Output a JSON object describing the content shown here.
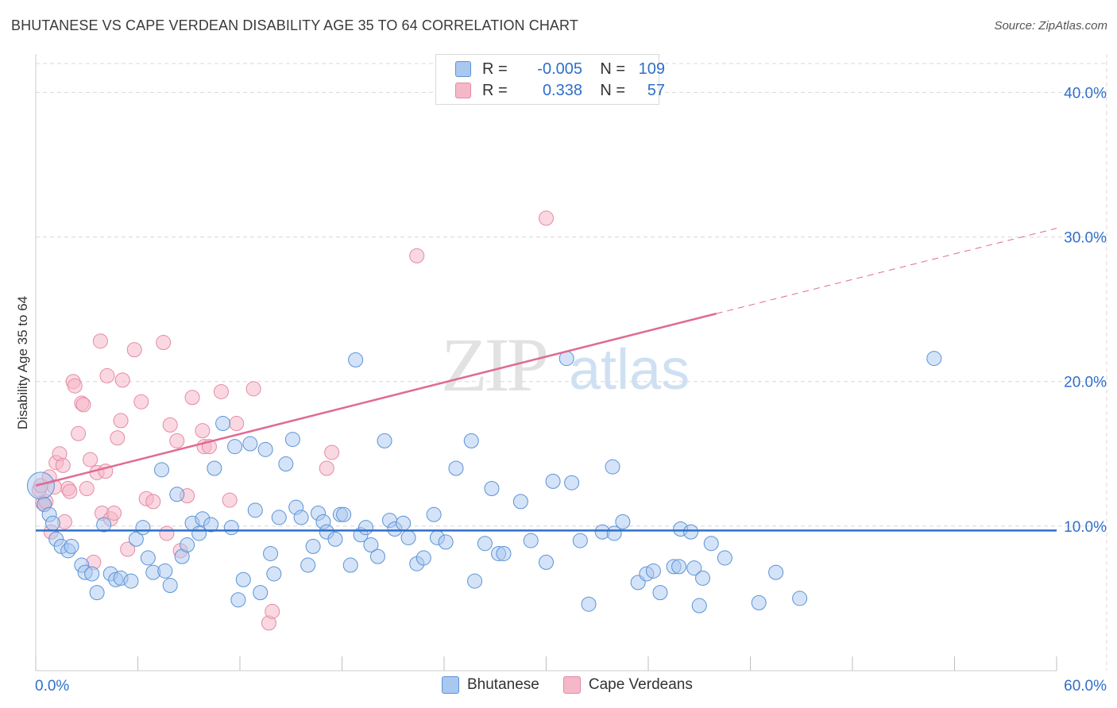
{
  "title": "BHUTANESE VS CAPE VERDEAN DISABILITY AGE 35 TO 64 CORRELATION CHART",
  "source": "Source: ZipAtlas.com",
  "watermark": {
    "zip": "ZIP",
    "atlas": "atlas"
  },
  "legend": {
    "rows": [
      {
        "r_label": "R =",
        "r_value": "-0.005",
        "n_label": "N =",
        "n_value": "109"
      },
      {
        "r_label": "R =",
        "r_value": "0.338",
        "n_label": "N =",
        "n_value": "57"
      }
    ]
  },
  "colors": {
    "blue_fill": "#a9c8f0",
    "blue_stroke": "#5b93d6",
    "blue_line": "#2f6fc9",
    "pink_fill": "#f5b8c9",
    "pink_stroke": "#e58aa6",
    "pink_line": "#e06b93",
    "tick_label": "#2f6fc9",
    "grid": "#d8d8d8"
  },
  "chart_data": {
    "type": "scatter",
    "title": "BHUTANESE VS CAPE VERDEAN DISABILITY AGE 35 TO 64 CORRELATION CHART",
    "xlabel": "",
    "ylabel": "Disability Age 35 to 64",
    "xlim": [
      0,
      60
    ],
    "ylim": [
      0,
      42
    ],
    "x_tick_labels": [
      "0.0%",
      "60.0%"
    ],
    "y_ticks": [
      10,
      20,
      30,
      40
    ],
    "y_tick_labels": [
      "10.0%",
      "20.0%",
      "30.0%",
      "40.0%"
    ],
    "grid": true,
    "legend_position": "top-center",
    "series": [
      {
        "name": "Bhutanese",
        "color": "#a9c8f0",
        "points": [
          [
            0.3,
            12.8
          ],
          [
            0.5,
            11.5
          ],
          [
            0.8,
            10.8
          ],
          [
            1.0,
            10.2
          ],
          [
            1.2,
            9.1
          ],
          [
            1.5,
            8.6
          ],
          [
            1.9,
            8.3
          ],
          [
            2.1,
            8.6
          ],
          [
            2.7,
            7.3
          ],
          [
            2.9,
            6.8
          ],
          [
            3.3,
            6.7
          ],
          [
            3.6,
            5.4
          ],
          [
            4.0,
            10.1
          ],
          [
            4.4,
            6.7
          ],
          [
            4.7,
            6.3
          ],
          [
            5.0,
            6.4
          ],
          [
            5.6,
            6.2
          ],
          [
            5.9,
            9.1
          ],
          [
            6.3,
            9.9
          ],
          [
            6.6,
            7.8
          ],
          [
            6.9,
            6.8
          ],
          [
            7.4,
            13.9
          ],
          [
            7.6,
            6.9
          ],
          [
            7.9,
            5.9
          ],
          [
            8.3,
            12.2
          ],
          [
            8.6,
            7.9
          ],
          [
            8.9,
            8.7
          ],
          [
            9.2,
            10.2
          ],
          [
            9.6,
            9.5
          ],
          [
            9.8,
            10.5
          ],
          [
            10.3,
            10.1
          ],
          [
            10.5,
            14.0
          ],
          [
            11.0,
            17.1
          ],
          [
            11.5,
            9.9
          ],
          [
            11.7,
            15.5
          ],
          [
            11.9,
            4.9
          ],
          [
            12.2,
            6.3
          ],
          [
            12.6,
            15.7
          ],
          [
            12.9,
            11.1
          ],
          [
            13.2,
            5.4
          ],
          [
            13.5,
            15.3
          ],
          [
            13.8,
            8.1
          ],
          [
            14.0,
            6.7
          ],
          [
            14.3,
            10.6
          ],
          [
            14.7,
            14.3
          ],
          [
            15.1,
            16.0
          ],
          [
            15.3,
            11.3
          ],
          [
            15.6,
            10.6
          ],
          [
            16.0,
            7.3
          ],
          [
            16.3,
            8.6
          ],
          [
            16.6,
            10.9
          ],
          [
            16.9,
            10.3
          ],
          [
            17.1,
            9.6
          ],
          [
            17.6,
            9.1
          ],
          [
            17.9,
            10.8
          ],
          [
            18.1,
            10.8
          ],
          [
            18.5,
            7.3
          ],
          [
            18.8,
            21.5
          ],
          [
            19.1,
            9.4
          ],
          [
            19.4,
            9.9
          ],
          [
            19.7,
            8.7
          ],
          [
            20.1,
            7.9
          ],
          [
            20.5,
            15.9
          ],
          [
            20.8,
            10.4
          ],
          [
            21.1,
            9.8
          ],
          [
            21.6,
            10.2
          ],
          [
            21.9,
            9.2
          ],
          [
            22.4,
            7.4
          ],
          [
            22.8,
            7.8
          ],
          [
            23.4,
            10.8
          ],
          [
            23.6,
            9.2
          ],
          [
            24.1,
            8.9
          ],
          [
            24.7,
            14.0
          ],
          [
            25.6,
            15.9
          ],
          [
            25.8,
            6.2
          ],
          [
            26.4,
            8.8
          ],
          [
            26.8,
            12.6
          ],
          [
            27.2,
            8.1
          ],
          [
            27.5,
            8.1
          ],
          [
            28.5,
            11.7
          ],
          [
            29.1,
            9.0
          ],
          [
            30.0,
            7.5
          ],
          [
            30.4,
            13.1
          ],
          [
            31.2,
            21.6
          ],
          [
            31.5,
            13.0
          ],
          [
            32.0,
            9.0
          ],
          [
            32.5,
            4.6
          ],
          [
            33.3,
            9.6
          ],
          [
            33.9,
            14.1
          ],
          [
            34.0,
            9.5
          ],
          [
            34.5,
            10.3
          ],
          [
            35.4,
            6.1
          ],
          [
            35.9,
            6.7
          ],
          [
            36.3,
            6.9
          ],
          [
            36.7,
            5.4
          ],
          [
            37.5,
            7.2
          ],
          [
            37.8,
            7.2
          ],
          [
            37.9,
            9.8
          ],
          [
            38.5,
            9.6
          ],
          [
            38.7,
            7.1
          ],
          [
            39.0,
            4.5
          ],
          [
            39.2,
            6.4
          ],
          [
            39.7,
            8.8
          ],
          [
            40.5,
            7.8
          ],
          [
            42.5,
            4.7
          ],
          [
            43.5,
            6.8
          ],
          [
            44.9,
            5.0
          ],
          [
            52.8,
            21.6
          ]
        ]
      },
      {
        "name": "Cape Verdeans",
        "color": "#f5b8c9",
        "points": [
          [
            0.2,
            12.5
          ],
          [
            0.3,
            12.8
          ],
          [
            0.4,
            11.6
          ],
          [
            0.5,
            11.5
          ],
          [
            0.6,
            11.7
          ],
          [
            0.8,
            13.4
          ],
          [
            0.9,
            9.6
          ],
          [
            1.1,
            12.7
          ],
          [
            1.2,
            14.4
          ],
          [
            1.4,
            15.0
          ],
          [
            1.6,
            14.2
          ],
          [
            1.7,
            10.3
          ],
          [
            1.9,
            12.6
          ],
          [
            2.0,
            12.4
          ],
          [
            2.2,
            20.0
          ],
          [
            2.3,
            19.7
          ],
          [
            2.5,
            16.4
          ],
          [
            2.7,
            18.5
          ],
          [
            2.8,
            18.4
          ],
          [
            3.0,
            12.6
          ],
          [
            3.2,
            14.6
          ],
          [
            3.4,
            7.5
          ],
          [
            3.6,
            13.7
          ],
          [
            3.8,
            22.8
          ],
          [
            3.9,
            10.9
          ],
          [
            4.1,
            13.8
          ],
          [
            4.2,
            20.4
          ],
          [
            4.4,
            10.5
          ],
          [
            4.6,
            10.9
          ],
          [
            4.8,
            16.1
          ],
          [
            5.0,
            17.3
          ],
          [
            5.1,
            20.1
          ],
          [
            5.4,
            8.4
          ],
          [
            5.8,
            22.2
          ],
          [
            6.2,
            18.6
          ],
          [
            6.5,
            11.9
          ],
          [
            6.9,
            11.7
          ],
          [
            7.5,
            22.7
          ],
          [
            7.7,
            9.5
          ],
          [
            7.9,
            17.0
          ],
          [
            8.3,
            15.9
          ],
          [
            8.5,
            8.3
          ],
          [
            8.9,
            12.1
          ],
          [
            9.2,
            18.9
          ],
          [
            9.8,
            16.6
          ],
          [
            9.9,
            15.5
          ],
          [
            10.2,
            15.5
          ],
          [
            10.9,
            19.3
          ],
          [
            11.4,
            11.8
          ],
          [
            11.8,
            17.1
          ],
          [
            12.8,
            19.5
          ],
          [
            13.7,
            3.3
          ],
          [
            13.9,
            4.1
          ],
          [
            17.1,
            14.0
          ],
          [
            17.4,
            15.1
          ],
          [
            22.4,
            28.7
          ],
          [
            30.0,
            31.3
          ]
        ]
      }
    ],
    "trendlines": [
      {
        "series": "Bhutanese",
        "x": [
          0,
          60
        ],
        "y": [
          9.7,
          9.7
        ]
      },
      {
        "series": "Cape Verdeans",
        "x": [
          0,
          40
        ],
        "y": [
          12.8,
          24.7
        ],
        "dashed_extension_to": [
          60,
          30.6
        ]
      }
    ]
  },
  "bottom_legend": [
    "Bhutanese",
    "Cape Verdeans"
  ]
}
